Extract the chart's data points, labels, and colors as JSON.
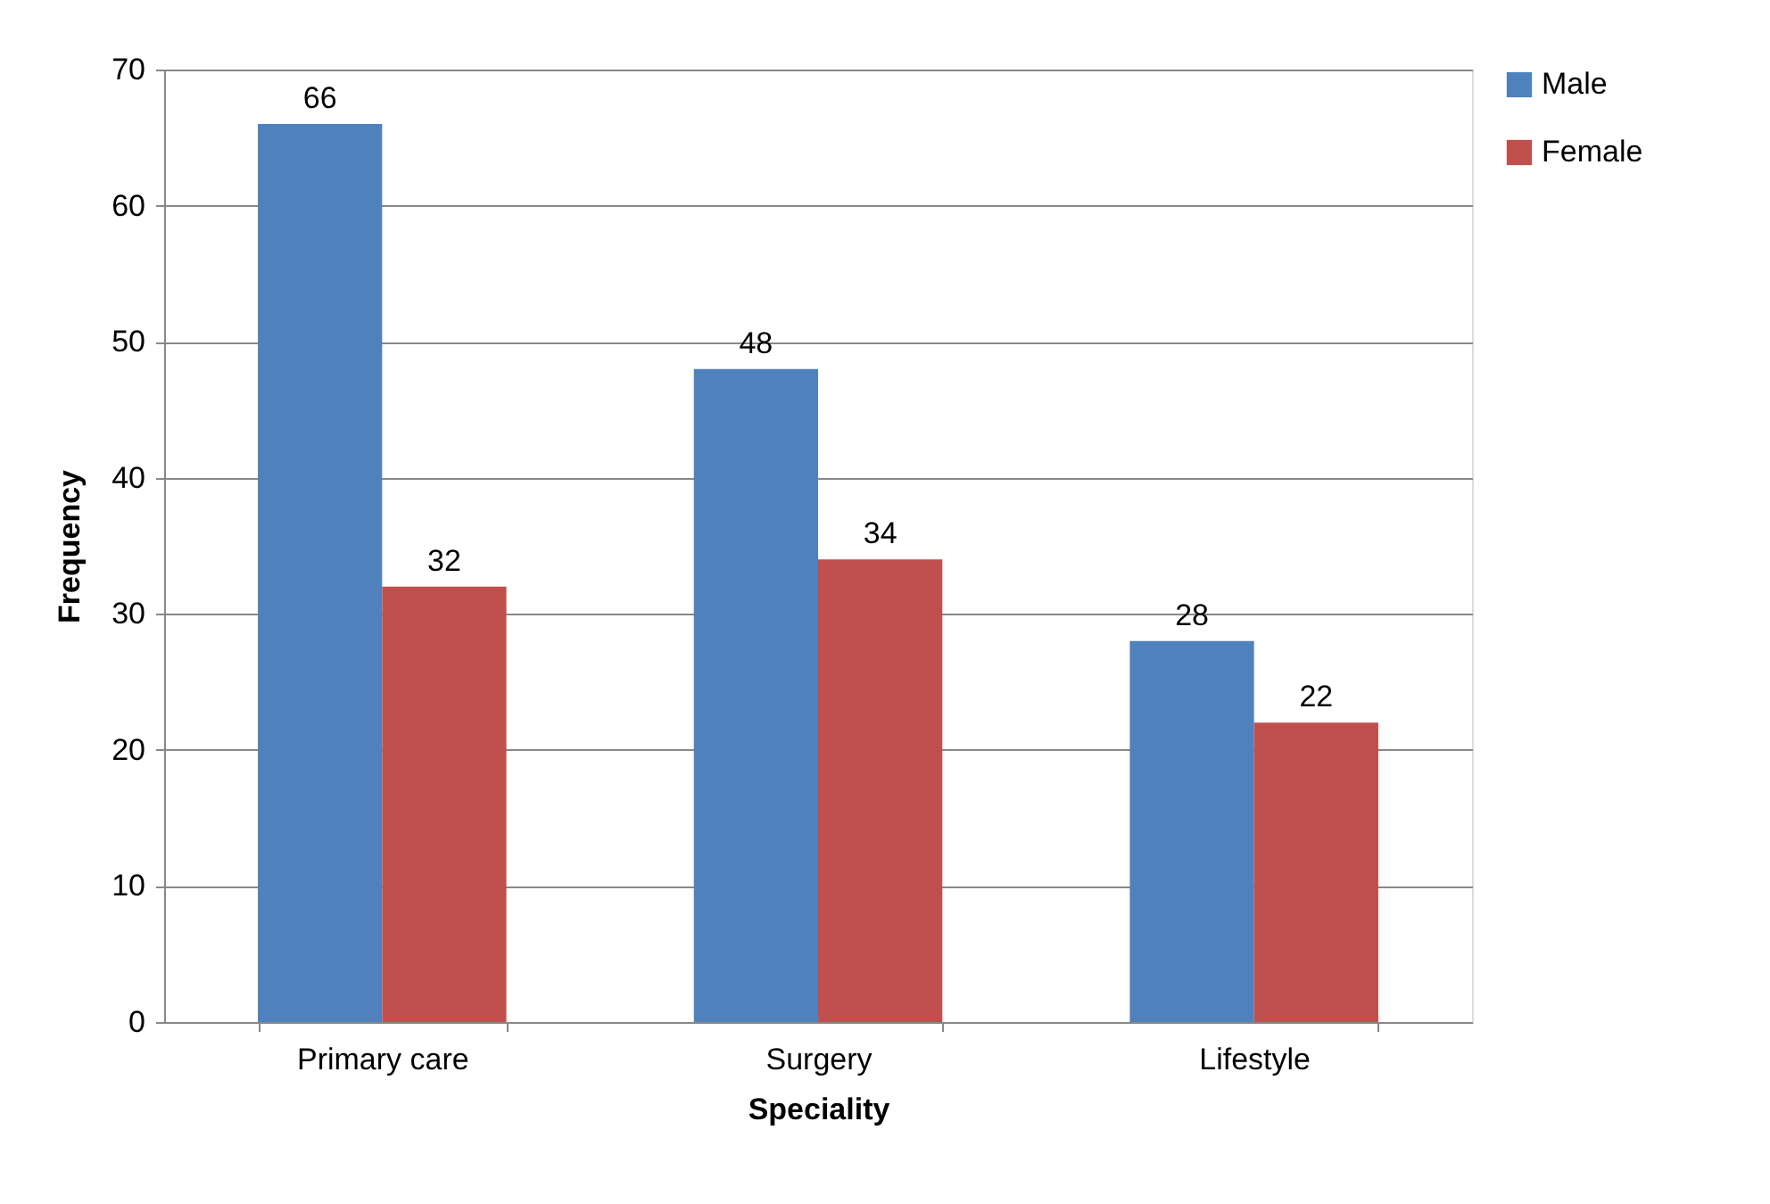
{
  "chart_data": {
    "type": "bar",
    "xlabel": "Speciality",
    "ylabel": "Frequency",
    "categories": [
      "Primary care",
      "Surgery",
      "Lifestyle"
    ],
    "series": [
      {
        "name": "Male",
        "color": "#4f81bd",
        "values": [
          66,
          48,
          28
        ]
      },
      {
        "name": "Female",
        "color": "#c0504d",
        "values": [
          32,
          34,
          22
        ]
      }
    ],
    "ylim": [
      0,
      70
    ],
    "yticks": [
      0,
      10,
      20,
      30,
      40,
      50,
      60,
      70
    ],
    "grid": "y",
    "legend": "right",
    "data_labels": true
  }
}
